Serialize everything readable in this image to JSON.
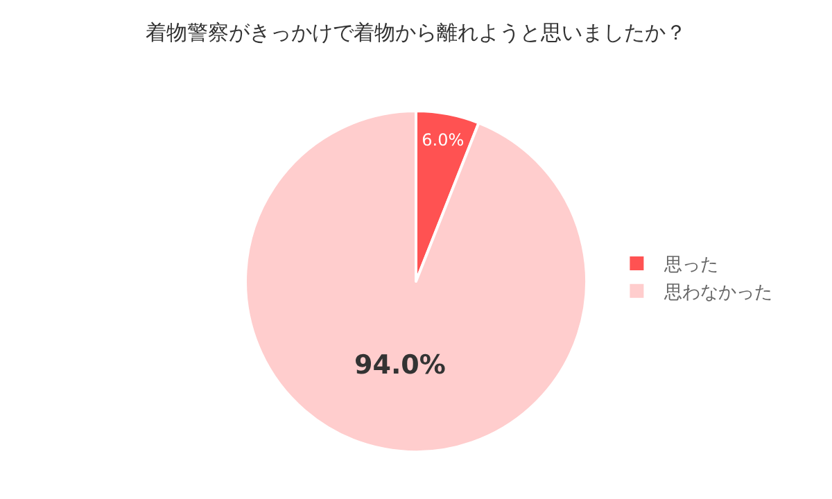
{
  "chart_data": {
    "type": "pie",
    "title": "着物警察がきっかけで着物から離れようと思いましたか？",
    "categories": [
      "思った",
      "思わなかった"
    ],
    "values": [
      6.0,
      94.0
    ],
    "value_labels": [
      "6.0%",
      "94.0%"
    ],
    "colors": [
      "#ff5252",
      "#ffcdcd"
    ],
    "legend": "right"
  }
}
